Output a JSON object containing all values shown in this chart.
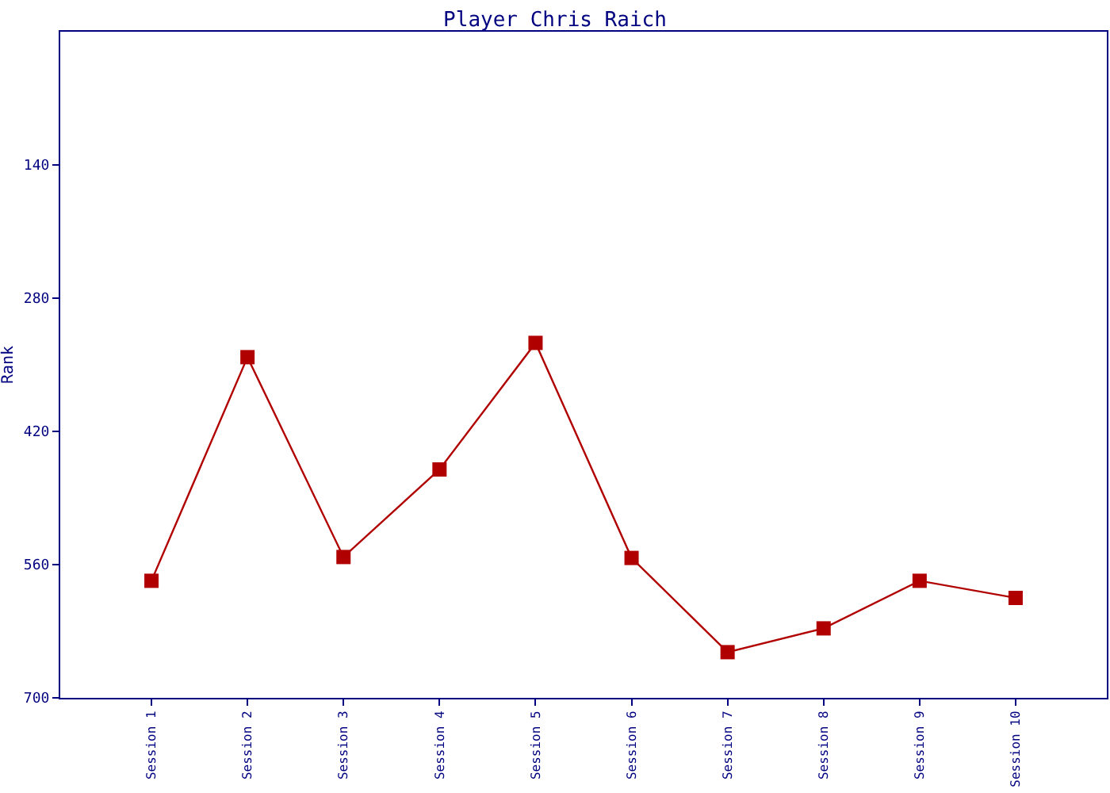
{
  "chart_data": {
    "type": "line",
    "title": "Player Chris Raich",
    "ylabel": "Rank",
    "categories": [
      "Session 1",
      "Session 2",
      "Session 3",
      "Session 4",
      "Session 5",
      "Session 6",
      "Session 7",
      "Session 8",
      "Session 9",
      "Session 10"
    ],
    "series": [
      {
        "color": "#b00000",
        "values": [
          577,
          342,
          552,
          460,
          327,
          553,
          652,
          627,
          577,
          595
        ]
      }
    ],
    "ylim": [
      700,
      0
    ],
    "yticks": [
      140,
      280,
      420,
      560,
      700
    ],
    "marker": "square",
    "line_style": "solid"
  }
}
